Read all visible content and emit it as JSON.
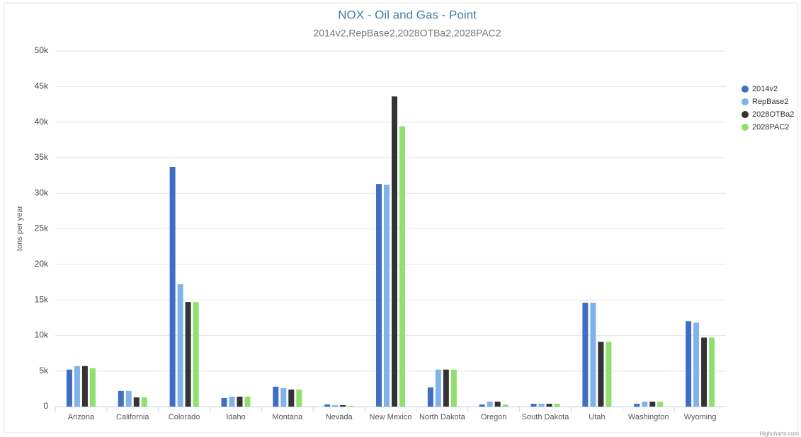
{
  "chart_data": {
    "type": "bar",
    "title": "NOX - Oil and Gas - Point",
    "subtitle": "2014v2,RepBase2,2028OTBa2,2028PAC2",
    "y_label": "tons per year",
    "credits": "Highcharts.com",
    "categories": [
      "Arizona",
      "California",
      "Colorado",
      "Idaho",
      "Montana",
      "Nevada",
      "New Mexico",
      "North Dakota",
      "Oregon",
      "South Dakota",
      "Utah",
      "Washington",
      "Wyoming"
    ],
    "series": [
      {
        "name": "2014v2",
        "color": "#3f6fc3",
        "values": [
          5200,
          2200,
          33700,
          1200,
          2800,
          300,
          31300,
          2700,
          300,
          400,
          14600,
          400,
          12000
        ]
      },
      {
        "name": "RepBase2",
        "color": "#7fb3e9",
        "values": [
          5700,
          2200,
          17200,
          1400,
          2600,
          200,
          31200,
          5200,
          700,
          400,
          14600,
          700,
          11800
        ]
      },
      {
        "name": "2028OTBa2",
        "color": "#333333",
        "values": [
          5700,
          1300,
          14700,
          1400,
          2400,
          200,
          43600,
          5200,
          700,
          400,
          9100,
          700,
          9700
        ]
      },
      {
        "name": "2028PAC2",
        "color": "#8fe06f",
        "values": [
          5400,
          1300,
          14700,
          1400,
          2400,
          100,
          39400,
          5200,
          300,
          400,
          9100,
          700,
          9700
        ]
      }
    ],
    "ylim": [
      0,
      50000
    ],
    "yticks": [
      0,
      {
        "value": 5000,
        "label": "5k"
      },
      {
        "value": 10000,
        "label": "10k"
      },
      {
        "value": 15000,
        "label": "15k"
      },
      {
        "value": 20000,
        "label": "20k"
      },
      {
        "value": 25000,
        "label": "25k"
      },
      {
        "value": 30000,
        "label": "30k"
      },
      {
        "value": 35000,
        "label": "35k"
      },
      {
        "value": 40000,
        "label": "40k"
      },
      {
        "value": 45000,
        "label": "45k"
      },
      {
        "value": 50000,
        "label": "50k"
      }
    ],
    "grid": true,
    "legend": "right"
  }
}
